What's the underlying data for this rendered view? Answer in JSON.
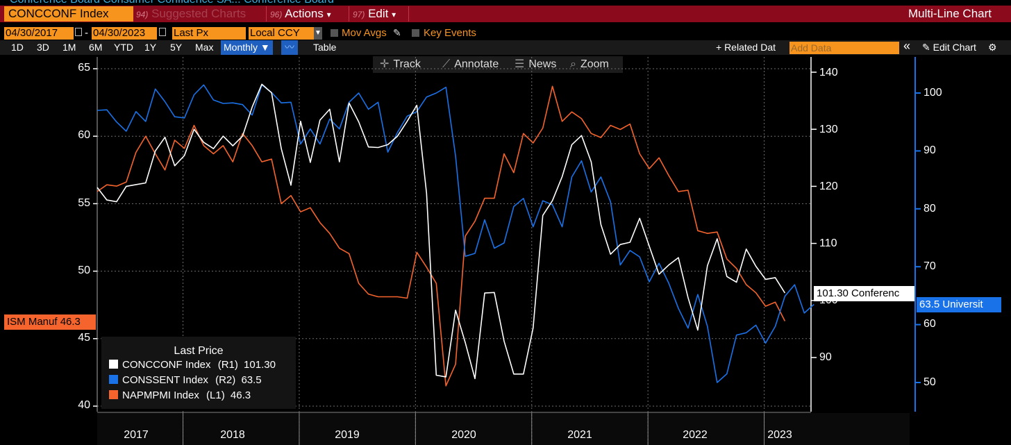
{
  "header": {
    "cut_title": "Conference Board Consumer Confidence SA...  Conference Board",
    "ticker": "CONCCONF Index",
    "suggested": {
      "num": "94)",
      "label": "Suggested Charts"
    },
    "actions": {
      "num": "96)",
      "label": "Actions",
      "caret": "▾"
    },
    "edit": {
      "num": "97)",
      "label": "Edit",
      "caret": "▾"
    },
    "chart_kind": "Multi-Line Chart"
  },
  "options": {
    "start_date": "04/30/2017",
    "dash": "-",
    "end_date": "04/30/2023",
    "field": "Last Px",
    "currency": "Local CCY",
    "mov_avgs": "Mov Avgs",
    "key_events": "Key Events"
  },
  "periods": [
    "1D",
    "3D",
    "1M",
    "6M",
    "YTD",
    "1Y",
    "5Y",
    "Max"
  ],
  "toolbar": {
    "frequency": "Monthly ▼",
    "table": "Table",
    "related": "+ Related Dat",
    "add_data_placeholder": "Add Data",
    "collapse": "«",
    "edit_chart": "Edit Chart",
    "gear": "⚙"
  },
  "chart_toolbar": [
    "Track",
    "Annotate",
    "News",
    "Zoom"
  ],
  "colors": {
    "white_series": "#ffffff",
    "blue_series": "#1a72e8",
    "orange_series": "#f5642d",
    "bloomberg_orange": "#f7941d",
    "header_red": "#8b0a1c"
  },
  "chart_data": {
    "type": "line",
    "axes": {
      "left": {
        "series": "NAPMPMI Index",
        "range": [
          40,
          65
        ],
        "ticks": [
          40,
          45,
          50,
          55,
          60,
          65
        ]
      },
      "right1": {
        "series": "CONCCONF Index",
        "range": [
          83,
          141
        ],
        "ticks": [
          90,
          100,
          110,
          120,
          130,
          140
        ]
      },
      "right2": {
        "series": "CONSSENT Index",
        "range": [
          45,
          107
        ],
        "ticks": [
          50,
          60,
          70,
          80,
          90,
          100
        ]
      }
    },
    "x_labels": [
      "2017",
      "2018",
      "2019",
      "2020",
      "2021",
      "2022",
      "2023"
    ],
    "x_start": "2017-04",
    "series": [
      {
        "name": "CONCCONF Index",
        "axis": "right1",
        "color": "#ffffff",
        "values": [
          119.8,
          117.6,
          117.3,
          120.0,
          120.3,
          120.6,
          126.2,
          128.6,
          123.6,
          125.4,
          130.0,
          127.7,
          126.6,
          128.8,
          127.1,
          128.8,
          133.9,
          137.9,
          136.4,
          126.6,
          120.2,
          131.4,
          124.2,
          131.6,
          133.5,
          124.3,
          134.6,
          131.3,
          126.9,
          126.8,
          127.3,
          128.8,
          131.4,
          134.2,
          118.8,
          86.9,
          86.6,
          98.3,
          92.6,
          86.3,
          101.3,
          101.4,
          92.9,
          87.1,
          87.1,
          95.2,
          114.9,
          117.5,
          121.7,
          127.3,
          128.9,
          124.3,
          113.3,
          108.1,
          109.8,
          110.2,
          114.4,
          109.5,
          104.6,
          106.2,
          107.5,
          100.5,
          94.8,
          106.1,
          110.8,
          104.2,
          103.2,
          109.0,
          106.0,
          103.7,
          104.0,
          101.3
        ]
      },
      {
        "name": "CONSSENT Index",
        "axis": "right2",
        "color": "#1a72e8",
        "values": [
          97.0,
          97.1,
          95.0,
          93.4,
          96.8,
          95.1,
          100.7,
          98.5,
          95.9,
          95.7,
          99.7,
          101.4,
          98.8,
          98.2,
          98.3,
          98.0,
          96.2,
          101.4,
          100.1,
          98.3,
          98.4,
          91.2,
          93.8,
          91.2,
          95.5,
          93.8,
          98.4,
          100.0,
          97.2,
          98.4,
          89.8,
          93.2,
          96.0,
          96.8,
          99.3,
          100.0,
          101.0,
          89.1,
          71.8,
          72.3,
          78.1,
          73.2,
          74.1,
          80.4,
          81.8,
          76.9,
          81.4,
          80.7,
          76.9,
          85.5,
          88.3,
          82.9,
          85.5,
          81.2,
          70.3,
          72.8,
          71.7,
          67.4,
          70.6,
          67.2,
          62.8,
          59.4,
          65.2,
          59.7,
          50.0,
          51.5,
          58.2,
          58.6,
          59.9,
          56.8,
          59.7,
          64.9,
          66.9,
          62.0,
          63.5
        ]
      },
      {
        "name": "NAPMPMI Index",
        "axis": "left",
        "color": "#f5642d",
        "values": [
          55.9,
          56.4,
          56.3,
          56.6,
          58.8,
          60.0,
          58.7,
          57.5,
          59.7,
          59.1,
          60.8,
          59.3,
          58.7,
          59.3,
          58.1,
          60.2,
          59.3,
          58.1,
          58.3,
          55.0,
          55.6,
          54.4,
          54.7,
          53.6,
          52.8,
          51.7,
          51.3,
          49.1,
          48.3,
          48.1,
          48.1,
          48.1,
          48.0,
          51.4,
          50.3,
          49.1,
          41.5,
          43.1,
          52.6,
          53.7,
          55.4,
          55.4,
          58.7,
          57.3,
          60.2,
          59.5,
          60.6,
          63.7,
          61.1,
          61.8,
          61.3,
          60.2,
          59.9,
          60.8,
          60.5,
          60.9,
          58.7,
          57.6,
          58.4,
          57.1,
          55.9,
          56.0,
          53.0,
          52.8,
          52.9,
          50.9,
          50.2,
          49.0,
          48.4,
          47.4,
          47.7,
          46.3
        ]
      }
    ]
  },
  "last_price": {
    "white_tag": "101.30 Conferenc",
    "blue_tag": "63.5 Universit",
    "orange_tag": "ISM Manuf 46.3"
  },
  "legend": {
    "title": "Last Price",
    "rows": [
      {
        "name": "CONCCONF Index",
        "axis": "(R1)",
        "value": "101.30",
        "color": "#ffffff"
      },
      {
        "name": "CONSSENT Index",
        "axis": "(R2)",
        "value": "63.5",
        "color": "#1a72e8"
      },
      {
        "name": "NAPMPMI Index",
        "axis": "(L1)",
        "value": "46.3",
        "color": "#f5642d"
      }
    ]
  }
}
